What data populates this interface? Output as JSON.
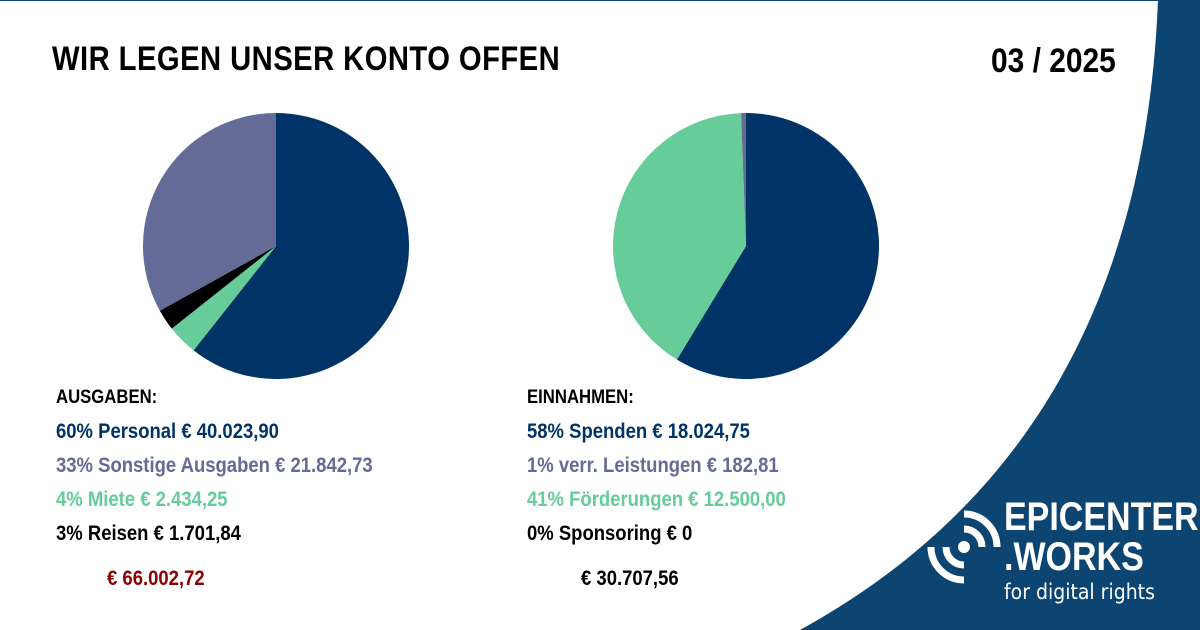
{
  "header": {
    "title": "WIR LEGEN UNSER KONTO OFFEN",
    "period": "03 / 2025"
  },
  "colors": {
    "navy": "#003366",
    "slate": "#646b96",
    "green": "#66cc99",
    "black": "#000000",
    "total_red": "#8b0000",
    "background_shape": "#0d4572"
  },
  "ausgaben": {
    "heading": "AUSGABEN:",
    "rows": [
      {
        "text": "60% Personal € 40.023,90",
        "color": "#003366"
      },
      {
        "text": "33%  Sonstige Ausgaben € 21.842,73",
        "color": "#646b96"
      },
      {
        "text": "4%  Miete € 2.434,25",
        "color": "#66cc99"
      },
      {
        "text": "3%   Reisen € 1.701,84",
        "color": "#000000"
      }
    ],
    "total": "€ 66.002,72"
  },
  "einnahmen": {
    "heading": "EINNAHMEN:",
    "rows": [
      {
        "text": "58% Spenden € 18.024,75",
        "color": "#003366"
      },
      {
        "text": "1%  verr. Leistungen € 182,81",
        "color": "#646b96"
      },
      {
        "text": "41%   Förderungen € 12.500,00",
        "color": "#66cc99"
      },
      {
        "text": "0%   Sponsoring € 0",
        "color": "#000000"
      }
    ],
    "total": "€ 30.707,56"
  },
  "chart_data": [
    {
      "type": "pie",
      "title": "AUSGABEN:",
      "categories": [
        "Personal",
        "Miete",
        "Reisen",
        "Sonstige Ausgaben"
      ],
      "values": [
        40023.9,
        2434.25,
        1701.84,
        21842.73
      ],
      "colors": [
        "#003366",
        "#66cc99",
        "#000000",
        "#646b96"
      ]
    },
    {
      "type": "pie",
      "title": "EINNAHMEN:",
      "categories": [
        "Spenden",
        "Förderungen",
        "verr. Leistungen",
        "Sponsoring"
      ],
      "values": [
        18024.75,
        12500.0,
        182.81,
        0
      ],
      "colors": [
        "#003366",
        "#66cc99",
        "#646b96",
        "#000000"
      ]
    }
  ],
  "logo": {
    "line1": "EPICENTER",
    "line2": ".WORKS",
    "line3": "for digital rights"
  }
}
